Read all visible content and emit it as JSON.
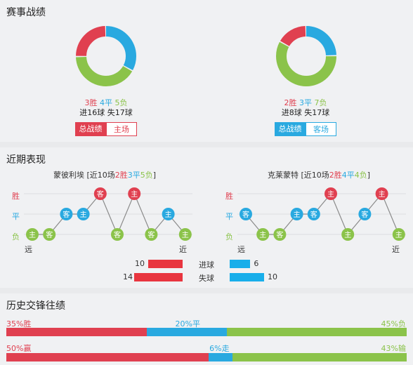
{
  "sections": {
    "record_title": "赛事战绩",
    "recent_title": "近期表现",
    "history_title": "历史交锋往绩"
  },
  "colors": {
    "win": "#e04050",
    "draw": "#29a9e0",
    "loss": "#8bc34a"
  },
  "left_team": {
    "wins": "3胜",
    "draws": "4平",
    "losses": "5负",
    "goals": "进16球 失17球",
    "tab_active": "总战绩",
    "tab_other": "主场",
    "donut": {
      "win": 3,
      "draw": 4,
      "loss": 5
    }
  },
  "right_team": {
    "wins": "2胜",
    "draws": "3平",
    "losses": "7负",
    "goals": "进8球 失17球",
    "tab_active": "总战绩",
    "tab_other": "客场",
    "donut": {
      "win": 2,
      "draw": 3,
      "loss": 7
    }
  },
  "recent": {
    "left": {
      "team": "蒙彼利埃",
      "prefix": " [近10场",
      "w": "2胜",
      "d": "3平",
      "l": "5负",
      "suffix": "]",
      "results": [
        "L",
        "L",
        "D",
        "D",
        "W",
        "L",
        "W",
        "L",
        "D",
        "L"
      ],
      "venues": [
        "主",
        "客",
        "客",
        "主",
        "客",
        "客",
        "主",
        "客",
        "主",
        "主"
      ]
    },
    "right": {
      "team": "克莱蒙特",
      "prefix": " [近10场",
      "w": "2胜",
      "d": "4平",
      "l": "4负",
      "suffix": "]",
      "results": [
        "D",
        "L",
        "L",
        "D",
        "D",
        "W",
        "L",
        "D",
        "W",
        "L"
      ],
      "venues": [
        "客",
        "主",
        "客",
        "主",
        "客",
        "主",
        "主",
        "客",
        "主",
        "主"
      ]
    },
    "y_labels": {
      "w": "胜",
      "d": "平",
      "l": "负"
    },
    "x_far": "远",
    "x_near": "近"
  },
  "goals_compare": {
    "scored_label": "进球",
    "conceded_label": "失球",
    "scored": {
      "left": 10,
      "right": 6
    },
    "conceded": {
      "left": 14,
      "right": 10
    }
  },
  "history": {
    "row1": {
      "win_label": "35%胜",
      "draw_label": "20%平",
      "loss_label": "45%负",
      "win": 35,
      "draw": 20,
      "loss": 45
    },
    "row2": {
      "win_label": "50%赢",
      "draw_label": "6%走",
      "loss_label": "43%输",
      "win": 50,
      "draw": 6,
      "loss": 43
    }
  }
}
